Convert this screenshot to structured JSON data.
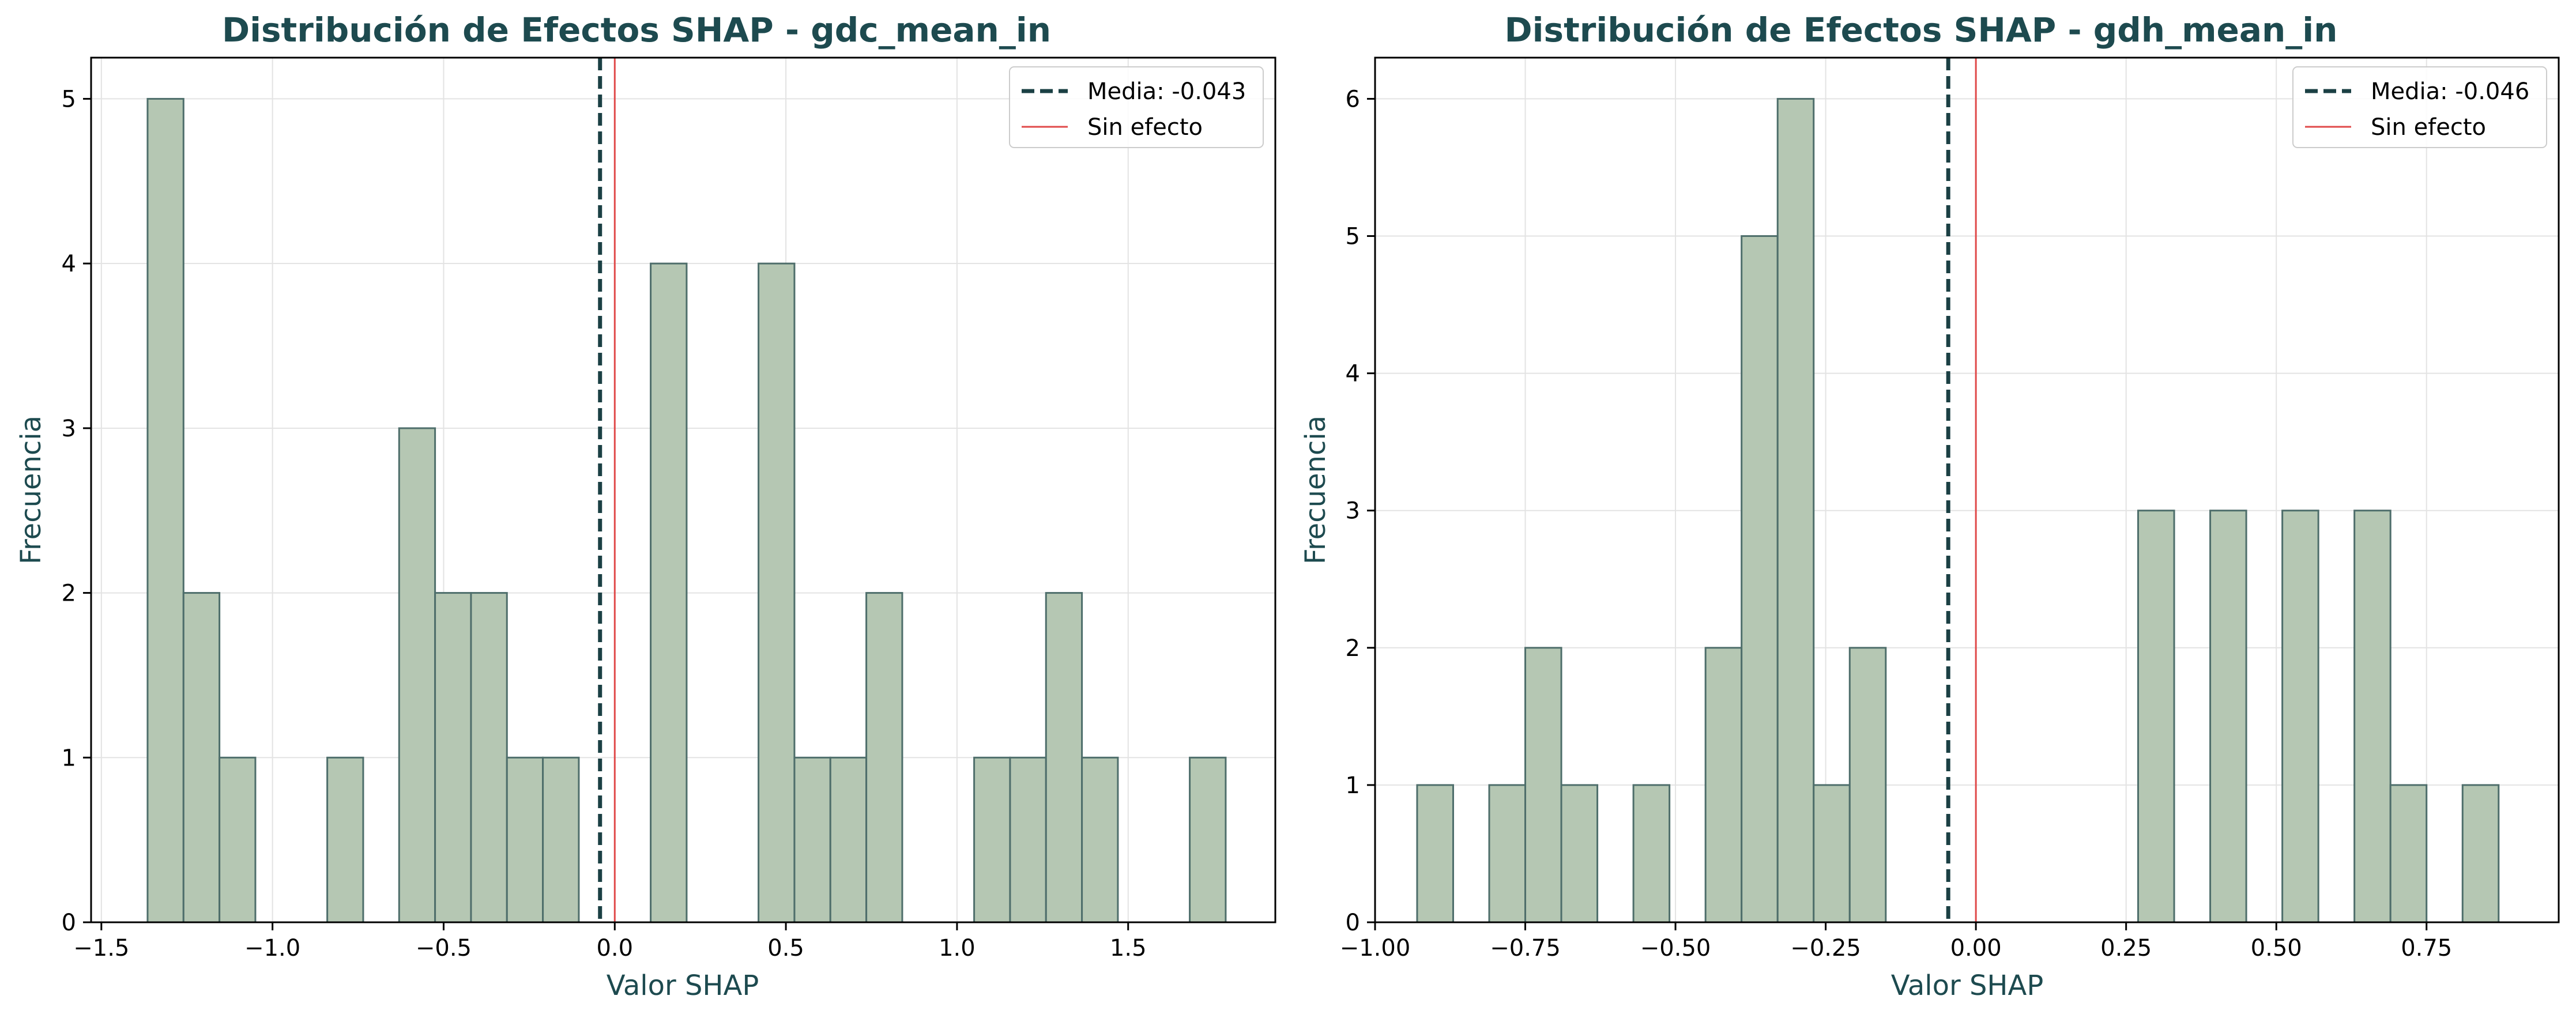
{
  "colors": {
    "bar_fill": "#b5c7b3",
    "bar_edge": "#4e6e6b",
    "mean_line": "#1b4044",
    "zero_line": "#e04a4a",
    "title": "#1d4a4f",
    "axis_label": "#1d4a4f",
    "grid": "#e3e3e3"
  },
  "chart_data": [
    {
      "type": "bar",
      "title": "Distribución de Efectos SHAP - gdc_mean_in",
      "xlabel": "Valor SHAP",
      "ylabel": "Frecuencia",
      "xlim": [
        -1.53,
        1.93
      ],
      "ylim": [
        0,
        5.25
      ],
      "xticks": [
        -1.5,
        -1.0,
        -0.5,
        0.0,
        0.5,
        1.0,
        1.5
      ],
      "xtick_labels": [
        "−1.5",
        "−1.0",
        "−0.5",
        "0.0",
        "0.5",
        "1.0",
        "1.5"
      ],
      "yticks": [
        0,
        1,
        2,
        3,
        4,
        5
      ],
      "ytick_labels": [
        "0",
        "1",
        "2",
        "3",
        "4",
        "5"
      ],
      "grid": true,
      "legend_position": "top-right",
      "bins": [
        {
          "x0": -1.365,
          "x1": -1.26,
          "count": 5
        },
        {
          "x0": -1.26,
          "x1": -1.155,
          "count": 2
        },
        {
          "x0": -1.155,
          "x1": -1.05,
          "count": 1
        },
        {
          "x0": -1.05,
          "x1": -0.945,
          "count": 0
        },
        {
          "x0": -0.945,
          "x1": -0.84,
          "count": 0
        },
        {
          "x0": -0.84,
          "x1": -0.735,
          "count": 1
        },
        {
          "x0": -0.735,
          "x1": -0.63,
          "count": 0
        },
        {
          "x0": -0.63,
          "x1": -0.525,
          "count": 3
        },
        {
          "x0": -0.525,
          "x1": -0.42,
          "count": 2
        },
        {
          "x0": -0.42,
          "x1": -0.315,
          "count": 2
        },
        {
          "x0": -0.315,
          "x1": -0.21,
          "count": 1
        },
        {
          "x0": -0.21,
          "x1": -0.105,
          "count": 1
        },
        {
          "x0": -0.105,
          "x1": 0.0,
          "count": 0
        },
        {
          "x0": 0.0,
          "x1": 0.105,
          "count": 0
        },
        {
          "x0": 0.105,
          "x1": 0.21,
          "count": 4
        },
        {
          "x0": 0.21,
          "x1": 0.315,
          "count": 0
        },
        {
          "x0": 0.315,
          "x1": 0.42,
          "count": 0
        },
        {
          "x0": 0.42,
          "x1": 0.525,
          "count": 4
        },
        {
          "x0": 0.525,
          "x1": 0.63,
          "count": 1
        },
        {
          "x0": 0.63,
          "x1": 0.735,
          "count": 1
        },
        {
          "x0": 0.735,
          "x1": 0.84,
          "count": 2
        },
        {
          "x0": 0.84,
          "x1": 0.945,
          "count": 0
        },
        {
          "x0": 0.945,
          "x1": 1.05,
          "count": 0
        },
        {
          "x0": 1.05,
          "x1": 1.155,
          "count": 1
        },
        {
          "x0": 1.155,
          "x1": 1.26,
          "count": 1
        },
        {
          "x0": 1.26,
          "x1": 1.365,
          "count": 2
        },
        {
          "x0": 1.365,
          "x1": 1.47,
          "count": 1
        },
        {
          "x0": 1.47,
          "x1": 1.575,
          "count": 0
        },
        {
          "x0": 1.575,
          "x1": 1.68,
          "count": 0
        },
        {
          "x0": 1.68,
          "x1": 1.785,
          "count": 1
        }
      ],
      "mean": -0.043,
      "mean_label": "Media: -0.043",
      "zero_label": "Sin efecto"
    },
    {
      "type": "bar",
      "title": "Distribución de Efectos SHAP - gdh_mean_in",
      "xlabel": "Valor SHAP",
      "ylabel": "Frecuencia",
      "xlim": [
        -1.0,
        0.97
      ],
      "ylim": [
        0,
        6.3
      ],
      "xticks": [
        -1.0,
        -0.75,
        -0.5,
        -0.25,
        0.0,
        0.25,
        0.5,
        0.75
      ],
      "xtick_labels": [
        "−1.00",
        "−0.75",
        "−0.50",
        "−0.25",
        "0.00",
        "0.25",
        "0.50",
        "0.75"
      ],
      "yticks": [
        0,
        1,
        2,
        3,
        4,
        5,
        6
      ],
      "ytick_labels": [
        "0",
        "1",
        "2",
        "3",
        "4",
        "5",
        "6"
      ],
      "grid": true,
      "legend_position": "top-right",
      "bins": [
        {
          "x0": -0.93,
          "x1": -0.87,
          "count": 1
        },
        {
          "x0": -0.87,
          "x1": -0.81,
          "count": 0
        },
        {
          "x0": -0.81,
          "x1": -0.75,
          "count": 1
        },
        {
          "x0": -0.75,
          "x1": -0.69,
          "count": 2
        },
        {
          "x0": -0.69,
          "x1": -0.63,
          "count": 1
        },
        {
          "x0": -0.63,
          "x1": -0.57,
          "count": 0
        },
        {
          "x0": -0.57,
          "x1": -0.51,
          "count": 1
        },
        {
          "x0": -0.51,
          "x1": -0.45,
          "count": 0
        },
        {
          "x0": -0.45,
          "x1": -0.39,
          "count": 2
        },
        {
          "x0": -0.39,
          "x1": -0.33,
          "count": 5
        },
        {
          "x0": -0.33,
          "x1": -0.27,
          "count": 6
        },
        {
          "x0": -0.27,
          "x1": -0.21,
          "count": 1
        },
        {
          "x0": -0.21,
          "x1": -0.15,
          "count": 2
        },
        {
          "x0": -0.15,
          "x1": -0.09,
          "count": 0
        },
        {
          "x0": -0.09,
          "x1": -0.03,
          "count": 0
        },
        {
          "x0": -0.03,
          "x1": 0.03,
          "count": 0
        },
        {
          "x0": 0.03,
          "x1": 0.09,
          "count": 0
        },
        {
          "x0": 0.09,
          "x1": 0.15,
          "count": 0
        },
        {
          "x0": 0.15,
          "x1": 0.21,
          "count": 0
        },
        {
          "x0": 0.21,
          "x1": 0.27,
          "count": 0
        },
        {
          "x0": 0.27,
          "x1": 0.33,
          "count": 3
        },
        {
          "x0": 0.33,
          "x1": 0.39,
          "count": 0
        },
        {
          "x0": 0.39,
          "x1": 0.45,
          "count": 3
        },
        {
          "x0": 0.45,
          "x1": 0.51,
          "count": 0
        },
        {
          "x0": 0.51,
          "x1": 0.57,
          "count": 3
        },
        {
          "x0": 0.57,
          "x1": 0.63,
          "count": 0
        },
        {
          "x0": 0.63,
          "x1": 0.69,
          "count": 3
        },
        {
          "x0": 0.69,
          "x1": 0.75,
          "count": 1
        },
        {
          "x0": 0.75,
          "x1": 0.81,
          "count": 0
        },
        {
          "x0": 0.81,
          "x1": 0.87,
          "count": 1
        }
      ],
      "mean": -0.046,
      "mean_label": "Media: -0.046",
      "zero_label": "Sin efecto"
    }
  ]
}
